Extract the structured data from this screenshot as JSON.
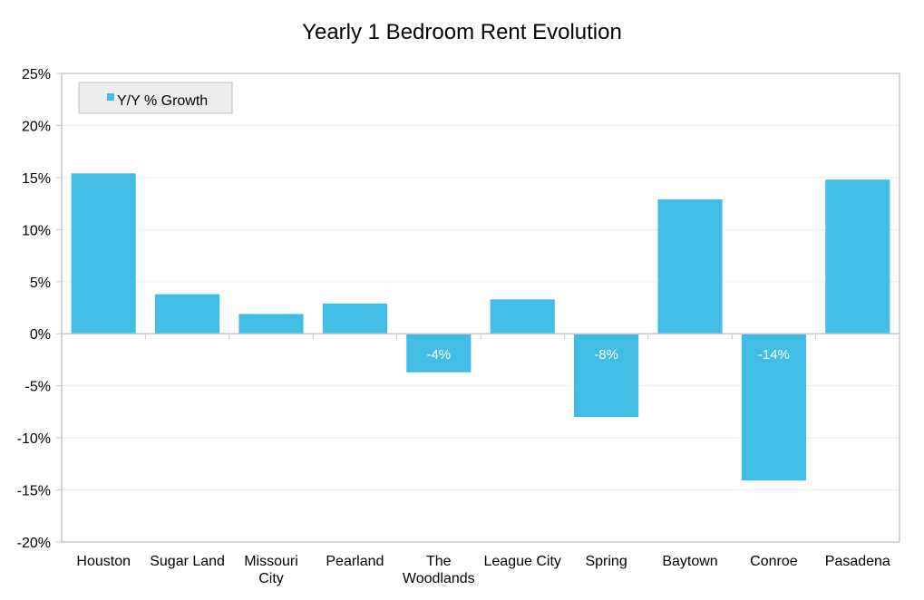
{
  "chart_data": {
    "type": "bar",
    "title": "Yearly 1 Bedroom Rent Evolution",
    "xlabel": "",
    "ylabel": "",
    "categories": [
      [
        "Houston"
      ],
      [
        "Sugar Land"
      ],
      [
        "Missouri",
        "City"
      ],
      [
        "Pearland"
      ],
      [
        "The",
        "Woodlands"
      ],
      [
        "League City"
      ],
      [
        "Spring"
      ],
      [
        "Baytown"
      ],
      [
        "Conroe"
      ],
      [
        "Pasadena"
      ]
    ],
    "series": [
      {
        "name": "Y/Y % Growth",
        "values": [
          15.4,
          3.8,
          1.9,
          2.9,
          -3.7,
          3.3,
          -8.0,
          12.9,
          -14.1,
          14.8
        ],
        "data_labels": [
          "",
          "",
          "",
          "",
          "-4%",
          "",
          "-8%",
          "",
          "-14%",
          ""
        ]
      }
    ],
    "ylim": [
      -20,
      25
    ],
    "yticks": [
      25,
      20,
      15,
      10,
      5,
      0,
      -5,
      -10,
      -15,
      -20
    ],
    "ytick_labels": [
      "25%",
      "20%",
      "15%",
      "10%",
      "5%",
      "0%",
      "-5%",
      "-10%",
      "-15%",
      "-20%"
    ],
    "grid": true,
    "legend_position": "top-left",
    "colors": {
      "bar": "#41BDE6",
      "axis": "#C8C8C8",
      "grid": "#EDEDED",
      "legend_bg": "#EDEDED"
    }
  }
}
